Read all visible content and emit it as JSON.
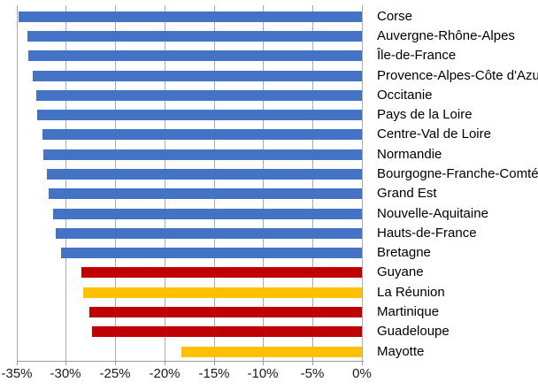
{
  "chart_data": {
    "type": "bar",
    "orientation": "horizontal",
    "title": "",
    "xlabel": "",
    "ylabel": "",
    "xlim": [
      -35,
      0
    ],
    "grid": "vertical",
    "legend": false,
    "x_tick_step": 5,
    "x_tick_labels": [
      "-35%",
      "-30%",
      "-25%",
      "-20%",
      "-15%",
      "-10%",
      "-5%",
      "0%"
    ],
    "x_tick_values": [
      -35,
      -30,
      -25,
      -20,
      -15,
      -10,
      -5,
      0
    ],
    "categories": [
      "Corse",
      "Auvergne-Rhône-Alpes",
      "Île-de-France",
      "Provence-Alpes-Côte d'Azu",
      "Occitanie",
      "Pays de la Loire",
      "Centre-Val de Loire",
      "Normandie",
      "Bourgogne-Franche-Comté",
      "Grand Est",
      "Nouvelle-Aquitaine",
      "Hauts-de-France",
      "Bretagne",
      "Guyane",
      "La Réunion",
      "Martinique",
      "Guadeloupe",
      "Mayotte"
    ],
    "values": [
      -34.8,
      -33.9,
      -33.8,
      -33.3,
      -33.0,
      -32.9,
      -32.4,
      -32.3,
      -31.9,
      -31.7,
      -31.3,
      -31.0,
      -30.5,
      -28.4,
      -28.2,
      -27.6,
      -27.3,
      -18.3
    ],
    "bar_colors": [
      "#4472C4",
      "#4472C4",
      "#4472C4",
      "#4472C4",
      "#4472C4",
      "#4472C4",
      "#4472C4",
      "#4472C4",
      "#4472C4",
      "#4472C4",
      "#4472C4",
      "#4472C4",
      "#4472C4",
      "#C00000",
      "#FFC000",
      "#C00000",
      "#C00000",
      "#FFC000"
    ],
    "colors": {
      "metropolitan_blue": "#4472C4",
      "overseas_red": "#C00000",
      "overseas_gold": "#FFC000",
      "gridline_gray": "#ACACAC",
      "axis_gray": "#9B9B9B",
      "text_black": "#000000"
    }
  }
}
